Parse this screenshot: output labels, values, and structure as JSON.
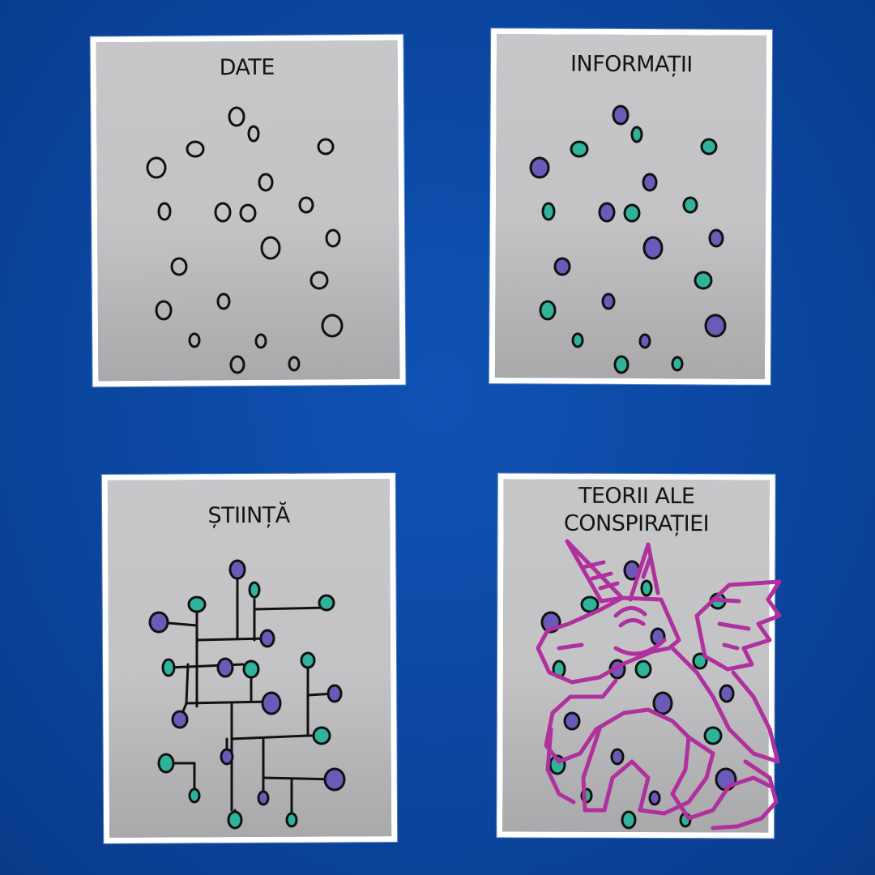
{
  "panels": [
    {
      "id": "data",
      "title": "DATE"
    },
    {
      "id": "information",
      "title": "INFORMAȚII"
    },
    {
      "id": "science",
      "title": "ȘTIINȚĂ"
    },
    {
      "id": "conspiracy",
      "title_line1": "TEORII ALE",
      "title_line2": "CONSPIRAȚIEI"
    }
  ],
  "colors": {
    "background": "#0b46a0",
    "panel": "#c5c5c7",
    "dot_teal": "#2fb39a",
    "dot_purple": "#6b5ab8",
    "unicorn": "#b0309e"
  }
}
